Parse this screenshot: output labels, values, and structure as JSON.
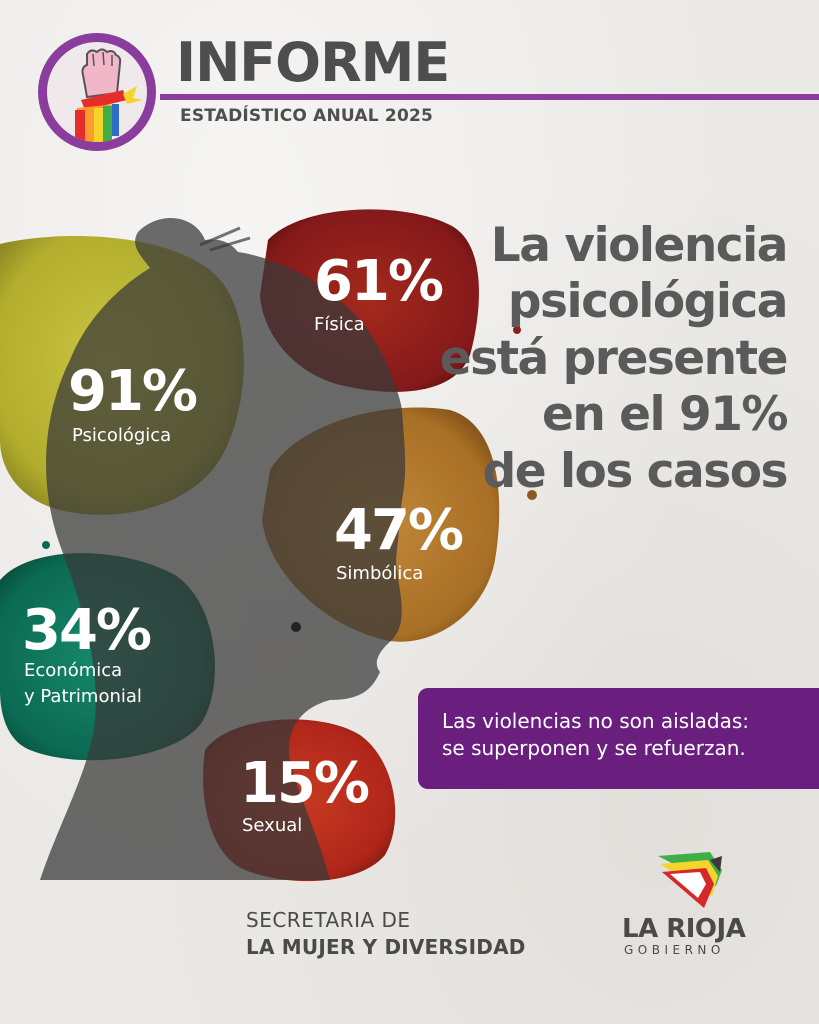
{
  "header": {
    "title": "INFORME",
    "subtitle": "ESTADÍSTICO ANUAL 2025"
  },
  "headline": {
    "lines": [
      "La violencia",
      "psicológica",
      "está presente",
      "en el 91%",
      "de los casos"
    ]
  },
  "stats": [
    {
      "percent": "91%",
      "label": "Psicológica",
      "color": "#b8b332"
    },
    {
      "percent": "61%",
      "label": "Física",
      "color": "#8e1f16"
    },
    {
      "percent": "47%",
      "label": "Simbólica",
      "color": "#a56b24"
    },
    {
      "percent": "34%",
      "label_line1": "Económica",
      "label_line2": "y Patrimonial",
      "color": "#0d6a52"
    },
    {
      "percent": "15%",
      "label": "Sexual",
      "color": "#b5261a"
    }
  ],
  "callout": {
    "line1": "Las violencias no son aisladas:",
    "line2": "se superponen y se refuerzan.",
    "color": "#6a1f7e"
  },
  "footer": {
    "secretaria_line1": "SECRETARIA DE",
    "secretaria_line2": "LA MUJER Y DIVERSIDAD",
    "gov_name": "LA RIOJA",
    "gov_sub": "GOBIERNO"
  },
  "icons": [
    "raised-fist-rainbow-icon",
    "la-rioja-logo-icon"
  ],
  "colors": {
    "accent": "#8a3d9c",
    "text": "#4e4e4e"
  }
}
